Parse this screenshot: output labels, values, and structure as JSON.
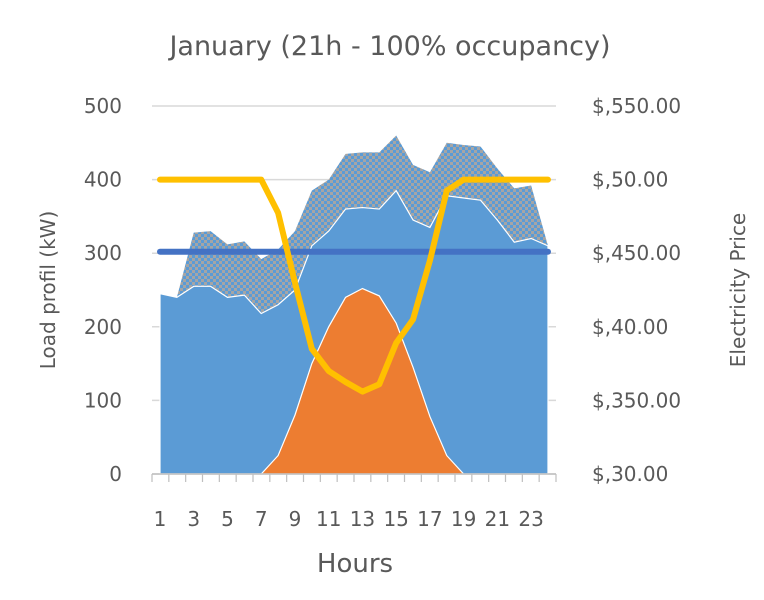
{
  "chart_data": {
    "type": "area",
    "title": "January (21h - 100% occupancy)",
    "xlabel": "Hours",
    "ylabel_left": "Load profil (kW)",
    "ylabel_right": "Electricity Price",
    "x": [
      1,
      2,
      3,
      4,
      5,
      6,
      7,
      8,
      9,
      10,
      11,
      12,
      13,
      14,
      15,
      16,
      17,
      18,
      19,
      20,
      21,
      22,
      23,
      24
    ],
    "x_tick_labels": [
      "1",
      "3",
      "5",
      "7",
      "9",
      "11",
      "13",
      "15",
      "17",
      "19",
      "21",
      "23"
    ],
    "y_left_ticks": [
      "0",
      "100",
      "200",
      "300",
      "400",
      "500"
    ],
    "y_left_range": [
      0,
      500
    ],
    "y_right_ticks": [
      "$,30.00",
      "$,350.00",
      "$,40.00",
      "$,450.00",
      "$,50.00",
      "$,550.00"
    ],
    "grid": true,
    "series": [
      {
        "kind": "area-patterned",
        "color": "#5b9bd5",
        "values": [
          245,
          240,
          328,
          330,
          312,
          316,
          292,
          305,
          330,
          385,
          400,
          435,
          437,
          437,
          460,
          420,
          410,
          450,
          447,
          445,
          415,
          388,
          392,
          310
        ]
      },
      {
        "kind": "area",
        "color": "#5b9bd5",
        "values": [
          245,
          240,
          255,
          255,
          240,
          243,
          218,
          230,
          250,
          310,
          330,
          360,
          362,
          360,
          385,
          345,
          335,
          378,
          375,
          372,
          345,
          315,
          320,
          310
        ]
      },
      {
        "kind": "area",
        "color": "#ed7d31",
        "values": [
          0,
          0,
          0,
          0,
          0,
          0,
          0,
          25,
          80,
          150,
          200,
          240,
          252,
          242,
          205,
          145,
          78,
          25,
          0,
          0,
          0,
          0,
          0,
          0
        ]
      },
      {
        "kind": "line",
        "color": "#4472c4",
        "values": [
          302,
          302,
          302,
          302,
          302,
          302,
          302,
          302,
          302,
          302,
          302,
          302,
          302,
          302,
          302,
          302,
          302,
          302,
          302,
          302,
          302,
          302,
          302,
          302
        ]
      },
      {
        "kind": "line",
        "color": "#ffc000",
        "values": [
          400,
          400,
          400,
          400,
          400,
          400,
          400,
          355,
          260,
          170,
          140,
          125,
          112,
          122,
          178,
          210,
          290,
          385,
          400,
          400,
          400,
          400,
          400,
          400
        ]
      }
    ]
  }
}
